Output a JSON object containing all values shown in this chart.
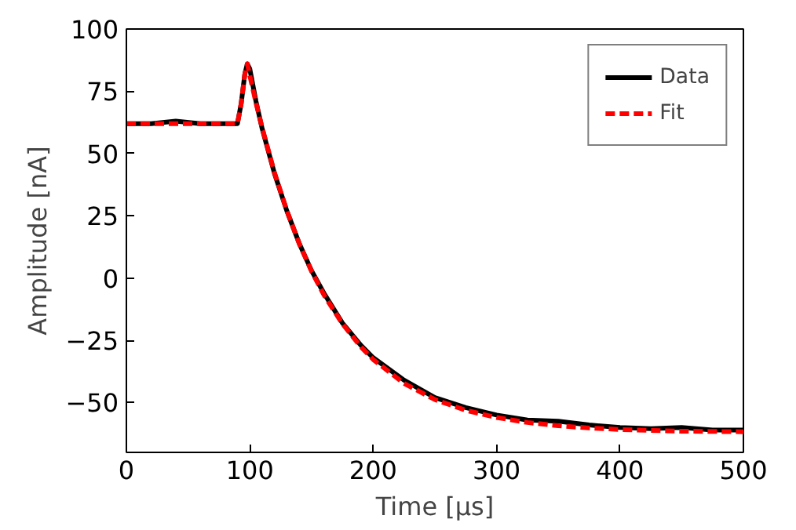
{
  "chart_data": {
    "type": "line",
    "xlabel": "Time [μs]",
    "ylabel": "Amplitude [nA]",
    "xlim": [
      0,
      500
    ],
    "ylim": [
      -70,
      100
    ],
    "xticks": [
      0,
      100,
      200,
      300,
      400,
      500
    ],
    "yticks": [
      -50,
      -25,
      0,
      25,
      50,
      75,
      100
    ],
    "grid": false,
    "legend": "top right",
    "series": [
      {
        "name": "Data",
        "color": "#000000",
        "line_style": "solid",
        "x": [
          0,
          20,
          40,
          60,
          80,
          90,
          93,
          96,
          98,
          100,
          105,
          110,
          120,
          130,
          140,
          150,
          160,
          175,
          190,
          200,
          225,
          250,
          275,
          300,
          325,
          350,
          375,
          400,
          425,
          450,
          475,
          500
        ],
        "values": [
          62,
          62,
          63,
          62,
          62,
          62,
          70,
          82,
          86,
          84,
          71,
          60,
          42,
          27,
          14,
          3,
          -6,
          -18,
          -27,
          -32,
          -41,
          -48,
          -52,
          -55,
          -57,
          -57.5,
          -59,
          -60,
          -60.5,
          -60,
          -61,
          -61
        ]
      },
      {
        "name": "Fit",
        "color": "#ff0000",
        "line_style": "dashed",
        "x": [
          0,
          20,
          40,
          60,
          80,
          90,
          93,
          96,
          98,
          100,
          105,
          110,
          120,
          130,
          140,
          150,
          160,
          175,
          190,
          200,
          225,
          250,
          275,
          300,
          325,
          350,
          375,
          400,
          425,
          450,
          475,
          500
        ],
        "values": [
          62,
          62,
          62,
          62,
          62,
          62,
          70,
          82,
          86,
          81.4,
          70.4,
          60.4,
          42.3,
          27.1,
          13.9,
          2.8,
          -6.7,
          -18.3,
          -27.6,
          -32.7,
          -42.3,
          -48.8,
          -53.1,
          -56,
          -58,
          -59.3,
          -60.2,
          -60.8,
          -61.2,
          -61.5,
          -61.6,
          -61.7
        ]
      }
    ]
  }
}
